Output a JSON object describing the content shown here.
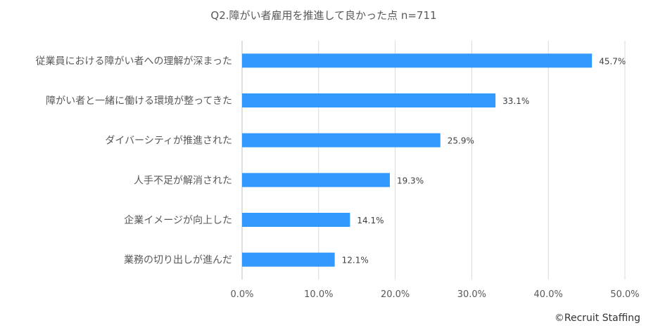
{
  "chart_data": {
    "type": "bar",
    "orientation": "horizontal",
    "title": "Q2.障がい者雇用を推進して良かった点 n=711",
    "categories": [
      "従業員における障がい者への理解が深まった",
      "障がい者と一緒に働ける環境が整ってきた",
      "ダイバーシティが推進された",
      "人手不足が解消された",
      "企業イメージが向上した",
      "業務の切り出しが進んだ"
    ],
    "values": [
      45.7,
      33.1,
      25.9,
      19.3,
      14.1,
      12.1
    ],
    "data_labels": [
      "45.7%",
      "33.1%",
      "25.9%",
      "19.3%",
      "14.1%",
      "12.1%"
    ],
    "xlim": [
      0,
      50
    ],
    "xticks": [
      0,
      10,
      20,
      30,
      40,
      50
    ],
    "xtick_labels": [
      "0.0%",
      "10.0%",
      "20.0%",
      "30.0%",
      "40.0%",
      "50.0%"
    ],
    "grid": true,
    "legend": "none",
    "bar_color": "#3399ff"
  },
  "credit": "©Recruit Staffing"
}
